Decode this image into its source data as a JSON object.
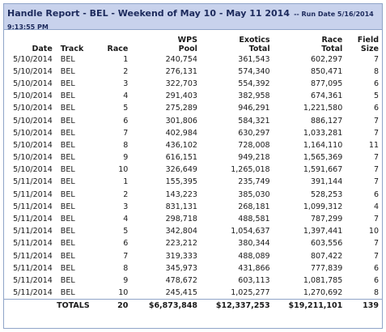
{
  "report": {
    "title": "Handle Report - BEL - Weekend of May 10 - May 11 2014",
    "run_date": "-- Run Date 5/16/2014 9:13:55 PM"
  },
  "columns": {
    "date": "Date",
    "track": "Track",
    "race": "Race",
    "wps_line1": "WPS",
    "wps_line2": "Pool",
    "exotics_line1": "Exotics",
    "exotics_line2": "Total",
    "race_total_line1": "Race",
    "race_total_line2": "Total",
    "field_size_line1": "Field",
    "field_size_line2": "Size"
  },
  "rows": [
    {
      "date": "5/10/2014",
      "track": "BEL",
      "race": "1",
      "wps": "240,754",
      "exotics": "361,543",
      "total": "602,297",
      "field": "7"
    },
    {
      "date": "5/10/2014",
      "track": "BEL",
      "race": "2",
      "wps": "276,131",
      "exotics": "574,340",
      "total": "850,471",
      "field": "8"
    },
    {
      "date": "5/10/2014",
      "track": "BEL",
      "race": "3",
      "wps": "322,703",
      "exotics": "554,392",
      "total": "877,095",
      "field": "6"
    },
    {
      "date": "5/10/2014",
      "track": "BEL",
      "race": "4",
      "wps": "291,403",
      "exotics": "382,958",
      "total": "674,361",
      "field": "5"
    },
    {
      "date": "5/10/2014",
      "track": "BEL",
      "race": "5",
      "wps": "275,289",
      "exotics": "946,291",
      "total": "1,221,580",
      "field": "6"
    },
    {
      "date": "5/10/2014",
      "track": "BEL",
      "race": "6",
      "wps": "301,806",
      "exotics": "584,321",
      "total": "886,127",
      "field": "7"
    },
    {
      "date": "5/10/2014",
      "track": "BEL",
      "race": "7",
      "wps": "402,984",
      "exotics": "630,297",
      "total": "1,033,281",
      "field": "7"
    },
    {
      "date": "5/10/2014",
      "track": "BEL",
      "race": "8",
      "wps": "436,102",
      "exotics": "728,008",
      "total": "1,164,110",
      "field": "11"
    },
    {
      "date": "5/10/2014",
      "track": "BEL",
      "race": "9",
      "wps": "616,151",
      "exotics": "949,218",
      "total": "1,565,369",
      "field": "7"
    },
    {
      "date": "5/10/2014",
      "track": "BEL",
      "race": "10",
      "wps": "326,649",
      "exotics": "1,265,018",
      "total": "1,591,667",
      "field": "7"
    },
    {
      "date": "5/11/2014",
      "track": "BEL",
      "race": "1",
      "wps": "155,395",
      "exotics": "235,749",
      "total": "391,144",
      "field": "7"
    },
    {
      "date": "5/11/2014",
      "track": "BEL",
      "race": "2",
      "wps": "143,223",
      "exotics": "385,030",
      "total": "528,253",
      "field": "6"
    },
    {
      "date": "5/11/2014",
      "track": "BEL",
      "race": "3",
      "wps": "831,131",
      "exotics": "268,181",
      "total": "1,099,312",
      "field": "4"
    },
    {
      "date": "5/11/2014",
      "track": "BEL",
      "race": "4",
      "wps": "298,718",
      "exotics": "488,581",
      "total": "787,299",
      "field": "7"
    },
    {
      "date": "5/11/2014",
      "track": "BEL",
      "race": "5",
      "wps": "342,804",
      "exotics": "1,054,637",
      "total": "1,397,441",
      "field": "10"
    },
    {
      "date": "5/11/2014",
      "track": "BEL",
      "race": "6",
      "wps": "223,212",
      "exotics": "380,344",
      "total": "603,556",
      "field": "7"
    },
    {
      "date": "5/11/2014",
      "track": "BEL",
      "race": "7",
      "wps": "319,333",
      "exotics": "488,089",
      "total": "807,422",
      "field": "7"
    },
    {
      "date": "5/11/2014",
      "track": "BEL",
      "race": "8",
      "wps": "345,973",
      "exotics": "431,866",
      "total": "777,839",
      "field": "6"
    },
    {
      "date": "5/11/2014",
      "track": "BEL",
      "race": "9",
      "wps": "478,672",
      "exotics": "603,113",
      "total": "1,081,785",
      "field": "6"
    },
    {
      "date": "5/11/2014",
      "track": "BEL",
      "race": "10",
      "wps": "245,415",
      "exotics": "1,025,277",
      "total": "1,270,692",
      "field": "8"
    }
  ],
  "totals": {
    "label": "TOTALS",
    "race": "20",
    "wps": "$6,873,848",
    "exotics": "$12,337,253",
    "total": "$19,211,101",
    "field": "139"
  },
  "colors": {
    "header_bg": "#c8d2ec",
    "border": "#8fa4c8",
    "title_text": "#1c2a5c"
  }
}
